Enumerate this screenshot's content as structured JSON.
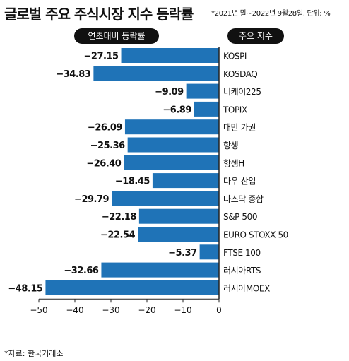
{
  "title": "글로벌 주요 주식시장 지수 등락률",
  "subtitle": "*2021년 말~2022년 9월28일, 단위: %",
  "header_left": "연초대비 등락률",
  "header_right": "주요 지수",
  "source": "*자료: 한국거래소",
  "colors": {
    "bar": "#1f73b7",
    "axis": "#222222",
    "text": "#111111"
  },
  "chart_data": {
    "type": "bar",
    "orientation": "horizontal",
    "categories": [
      "KOSPI",
      "KOSDAQ",
      "니케이225",
      "TOPIX",
      "대만 가권",
      "항셍",
      "항셍H",
      "다우 산업",
      "나스닥 종합",
      "S&P 500",
      "EURO STOXX 50",
      "FTSE 100",
      "러시아RTS",
      "러시아MOEX"
    ],
    "values": [
      -27.15,
      -34.83,
      -9.09,
      -6.89,
      -26.09,
      -25.36,
      -26.4,
      -18.45,
      -29.79,
      -22.18,
      -22.54,
      -5.37,
      -32.66,
      -48.15
    ],
    "value_labels": [
      "-27.15",
      "-34.83",
      "-9.09",
      "-6.89",
      "-26.09",
      "-25.36",
      "-26.40",
      "-18.45",
      "-29.79",
      "-22.18",
      "-22.54",
      "-5.37",
      "-32.66",
      "-48.15"
    ],
    "xlim": [
      -50,
      0
    ],
    "xticks": [
      -50,
      -40,
      -30,
      -20,
      -10,
      0
    ],
    "xtick_labels": [
      "−50",
      "−40",
      "−30",
      "−20",
      "−10",
      "0"
    ],
    "grid": false
  }
}
